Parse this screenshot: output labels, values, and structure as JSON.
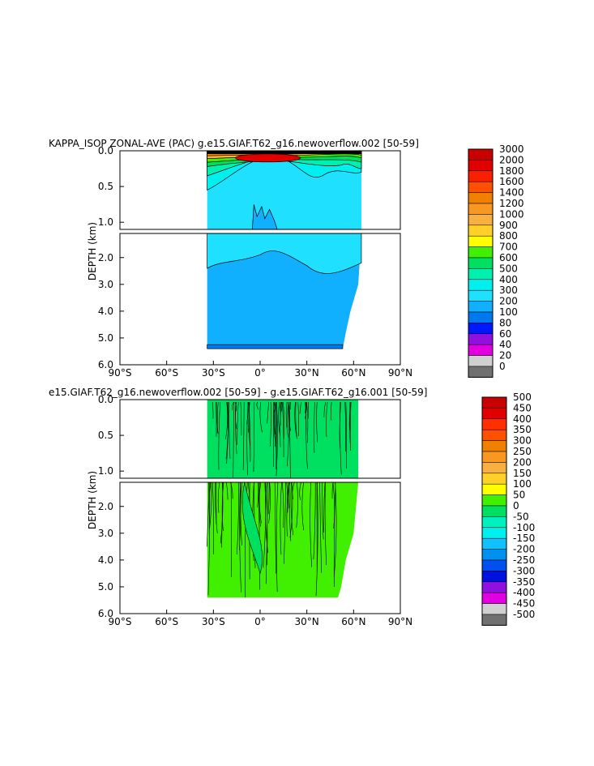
{
  "chart_data": [
    {
      "type": "heatmap",
      "title": "KAPPA_ISOP ZONAL-AVE (PAC) g.e15.GIAF.T62_g16.newoverflow.002 [50-59]",
      "ylabel": "DEPTH (km)",
      "xlabel": "",
      "xlim": [
        -90,
        90
      ],
      "x_ticks": [
        -90,
        -60,
        -30,
        0,
        30,
        60,
        90
      ],
      "x_tick_labels": [
        "90°S",
        "60°S",
        "30°S",
        "0°",
        "30°N",
        "60°N",
        "90°N"
      ],
      "ylim_upper_km": [
        0,
        1.1
      ],
      "ylim_lower_km": [
        1.1,
        6.0
      ],
      "y_tick_labels_upper": [
        "0.0",
        "0.5",
        "1.0"
      ],
      "y_tick_labels_lower": [
        "2.0",
        "3.0",
        "4.0",
        "5.0",
        "6.0"
      ],
      "data_extent_lat": [
        -34,
        65
      ],
      "colorbar_levels": [
        "3000",
        "2000",
        "1800",
        "1600",
        "1400",
        "1200",
        "1000",
        "900",
        "800",
        "700",
        "600",
        "500",
        "400",
        "300",
        "200",
        "100",
        "80",
        "60",
        "40",
        "20",
        "0"
      ],
      "colorbar_colors": [
        "#c80000",
        "#e00000",
        "#f82000",
        "#ff5000",
        "#f08000",
        "#f89820",
        "#f8b040",
        "#ffd028",
        "#ffff00",
        "#40f000",
        "#00e060",
        "#00f0b0",
        "#00f0f0",
        "#20e0ff",
        "#10b0ff",
        "#0078f0",
        "#0018ff",
        "#9010e0",
        "#e000e0",
        "#d0d0d0",
        "#707070"
      ]
    },
    {
      "type": "heatmap",
      "title": "e15.GIAF.T62_g16.newoverflow.002 [50-59] - g.e15.GIAF.T62_g16.001 [50-59]",
      "ylabel": "DEPTH (km)",
      "xlabel": "",
      "xlim": [
        -90,
        90
      ],
      "x_ticks": [
        -90,
        -60,
        -30,
        0,
        30,
        60,
        90
      ],
      "x_tick_labels": [
        "90°S",
        "60°S",
        "30°S",
        "0°",
        "30°N",
        "60°N",
        "90°N"
      ],
      "ylim_upper_km": [
        0,
        1.1
      ],
      "ylim_lower_km": [
        1.1,
        6.0
      ],
      "y_tick_labels_upper": [
        "0.0",
        "0.5",
        "1.0"
      ],
      "y_tick_labels_lower": [
        "2.0",
        "3.0",
        "4.0",
        "5.0",
        "6.0"
      ],
      "data_extent_lat": [
        -34,
        63
      ],
      "colorbar_levels": [
        "500",
        "450",
        "400",
        "350",
        "300",
        "250",
        "200",
        "150",
        "100",
        "50",
        "0",
        "-50",
        "-100",
        "-150",
        "-200",
        "-250",
        "-300",
        "-350",
        "-400",
        "-450",
        "-500"
      ],
      "colorbar_colors": [
        "#c80000",
        "#e00000",
        "#ff3000",
        "#ff5000",
        "#f08000",
        "#f89820",
        "#f8b040",
        "#ffd028",
        "#ffff00",
        "#40f000",
        "#00e060",
        "#00f0c0",
        "#00f0f0",
        "#10c0ff",
        "#0090f0",
        "#0050f0",
        "#0010e0",
        "#9010e0",
        "#e000e0",
        "#d0d0d0",
        "#707070"
      ]
    }
  ]
}
